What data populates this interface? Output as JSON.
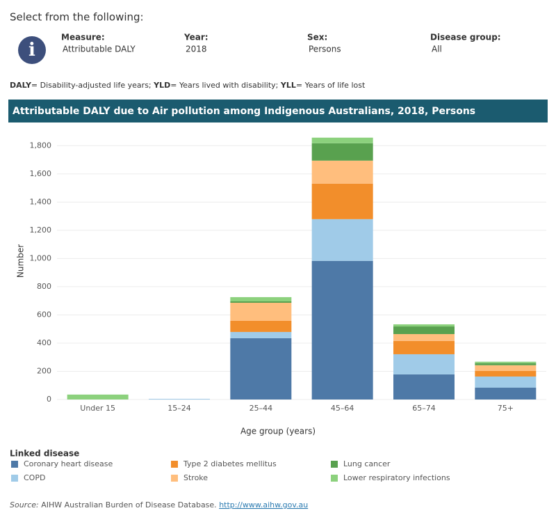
{
  "header": {
    "prompt": "Select from the following:",
    "fields": [
      {
        "label": "Measure:",
        "value": "Attributable DALY"
      },
      {
        "label": "Year:",
        "value": "2018"
      },
      {
        "label": "Sex:",
        "value": "Persons"
      },
      {
        "label": "Disease group:",
        "value": "All"
      }
    ],
    "footnote": [
      "DALY",
      "= Disability-adjusted life years; ",
      "YLD",
      "= Years lived with disability; ",
      "YLL",
      "= Years of life lost"
    ]
  },
  "chart_data": {
    "type": "stacked_bar",
    "title": "Attributable DALY due to Air pollution among Indigenous Australians, 2018, Persons",
    "x_label": "Age group (years)",
    "y_label": "Number",
    "categories": [
      "Under 15",
      "15–24",
      "25–44",
      "45–64",
      "65–74",
      "75+"
    ],
    "series": [
      {
        "name": "Coronary heart disease",
        "color": "#4e79a7",
        "values": [
          0,
          0,
          435,
          983,
          178,
          84
        ]
      },
      {
        "name": "COPD",
        "color": "#a0cbe8",
        "values": [
          0,
          5,
          44,
          296,
          143,
          79
        ]
      },
      {
        "name": "Type 2 diabetes mellitus",
        "color": "#f28e2b",
        "values": [
          0,
          0,
          79,
          252,
          94,
          40
        ]
      },
      {
        "name": "Stroke",
        "color": "#ffbe7d",
        "values": [
          0,
          0,
          128,
          163,
          49,
          40
        ]
      },
      {
        "name": "Lung cancer",
        "color": "#59a14f",
        "values": [
          0,
          0,
          10,
          123,
          54,
          15
        ]
      },
      {
        "name": "Lower respiratory infections",
        "color": "#8cd17d",
        "values": [
          35,
          0,
          30,
          40,
          15,
          10
        ]
      }
    ],
    "ylim": [
      0,
      1920
    ],
    "yticks": [
      0,
      200,
      400,
      600,
      800,
      {
        "value": 1000,
        "label": "1,000"
      },
      {
        "value": 1200,
        "label": "1,200"
      },
      {
        "value": 1400,
        "label": "1,400"
      },
      {
        "value": 1600,
        "label": "1,600"
      },
      {
        "value": 1800,
        "label": "1,800"
      }
    ],
    "grid": true,
    "legend_title": "Linked disease"
  },
  "source": {
    "label": "Source:",
    "text": "AIHW Australian Burden of Disease Database.",
    "link": "http://www.aihw.gov.au"
  }
}
